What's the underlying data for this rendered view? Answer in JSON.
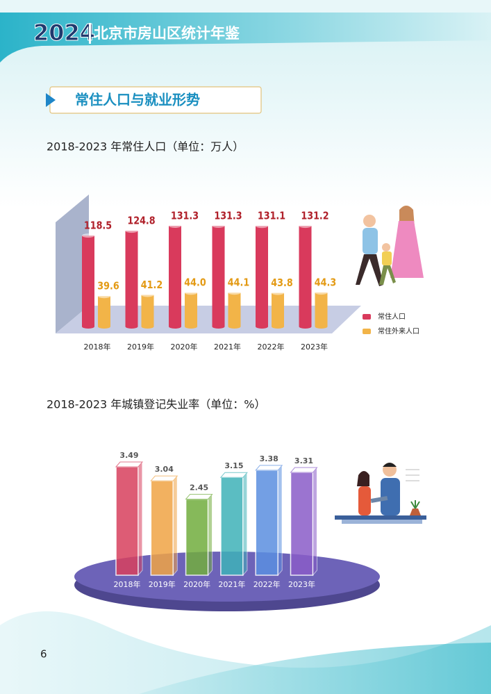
{
  "header": {
    "year": "2024",
    "title": "北京市房山区统计年鉴"
  },
  "section": "常住人口与就业形势",
  "page_number": "6",
  "chart_data": [
    {
      "type": "cylinder-bar",
      "title": "2018-2023 年常住人口（单位：万人）",
      "categories": [
        "2018年",
        "2019年",
        "2020年",
        "2021年",
        "2022年",
        "2023年"
      ],
      "series": [
        {
          "name": "常住人口",
          "color": "#d93a5c",
          "label_color": "#b0202a",
          "values": [
            118.5,
            124.8,
            131.3,
            131.3,
            131.1,
            131.2
          ]
        },
        {
          "name": "常住外来人口",
          "color": "#f2b448",
          "label_color": "#e39a14",
          "values": [
            39.6,
            41.2,
            44.0,
            44.1,
            43.8,
            44.3
          ],
          "value_labels": [
            "39.6",
            "41.2",
            "44.0",
            "44.1",
            "43.8",
            "44.3"
          ]
        }
      ],
      "legend": "right"
    },
    {
      "type": "glass-bar",
      "title": "2018-2023 年城镇登记失业率（单位：%）",
      "categories": [
        "2018年",
        "2019年",
        "2020年",
        "2021年",
        "2022年",
        "2023年"
      ],
      "values": [
        3.49,
        3.04,
        2.45,
        3.15,
        3.38,
        3.31
      ],
      "colors": [
        "#d8405e",
        "#f0a445",
        "#72ad3e",
        "#3fb2b8",
        "#5b8fe0",
        "#8a5cc8"
      ]
    }
  ]
}
